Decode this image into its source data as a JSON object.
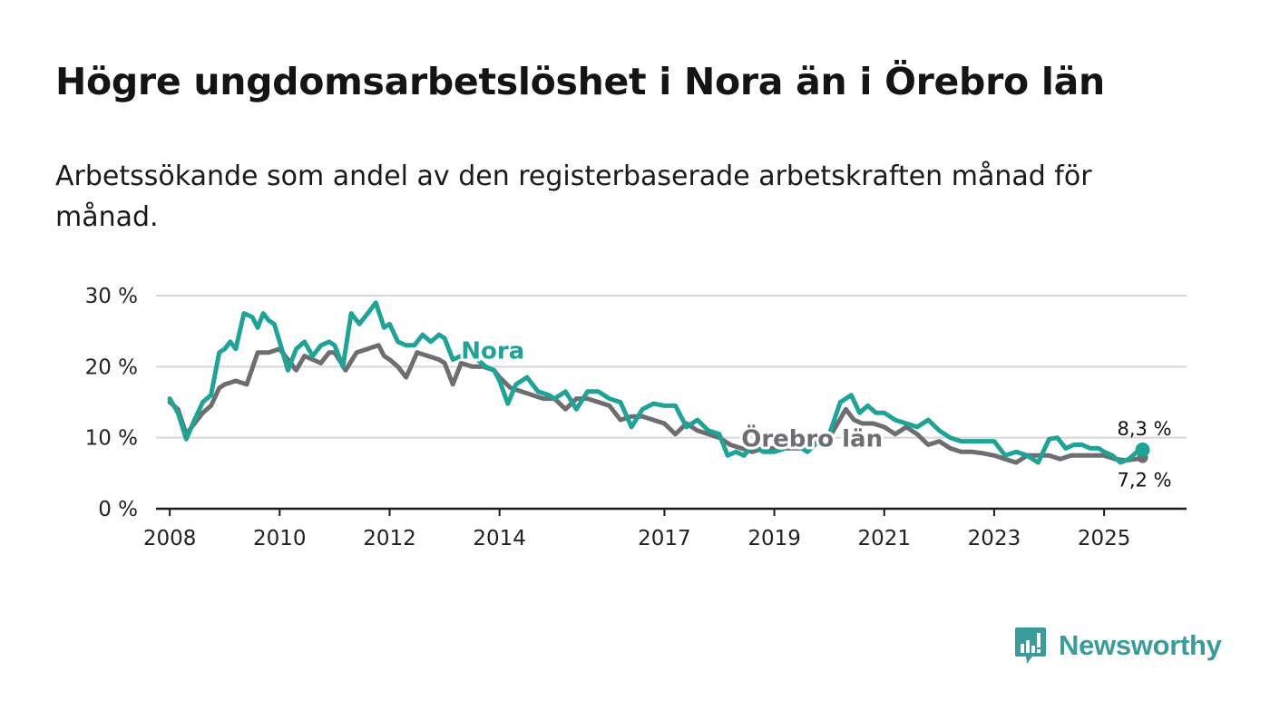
{
  "title": "Högre ungdomsarbetslöshet i Nora än i Örebro län",
  "subtitle": "Arbetssökande som andel av den registerbaserade arbetskraften månad för månad.",
  "brand": {
    "name": "Newsworthy",
    "color": "#3a9b9b"
  },
  "chart_data": {
    "type": "line",
    "title": "Högre ungdomsarbetslöshet i Nora än i Örebro län",
    "xlabel": "",
    "ylabel": "",
    "ylim": [
      0,
      30
    ],
    "xlim": [
      2007.75,
      2026.5
    ],
    "y_ticks": [
      0,
      10,
      20,
      30
    ],
    "y_tick_labels": [
      "0 %",
      "10 %",
      "20 %",
      "30 %"
    ],
    "x_ticks": [
      2008,
      2010,
      2012,
      2014,
      2017,
      2019,
      2021,
      2023,
      2025
    ],
    "x_tick_labels": [
      "2008",
      "2010",
      "2012",
      "2014",
      "2017",
      "2019",
      "2021",
      "2023",
      "2025"
    ],
    "grid": true,
    "series": [
      {
        "name": "Nora",
        "color": "#1fa396",
        "end_label": "8,3 %",
        "x": [
          2008.0,
          2008.15,
          2008.3,
          2008.45,
          2008.6,
          2008.75,
          2008.9,
          2009.0,
          2009.1,
          2009.2,
          2009.35,
          2009.5,
          2009.6,
          2009.7,
          2009.8,
          2009.9,
          2010.0,
          2010.15,
          2010.3,
          2010.45,
          2010.6,
          2010.75,
          2010.9,
          2011.0,
          2011.15,
          2011.3,
          2011.45,
          2011.6,
          2011.75,
          2011.9,
          2012.0,
          2012.15,
          2012.3,
          2012.45,
          2012.6,
          2012.75,
          2012.9,
          2013.0,
          2013.15,
          2013.3,
          2013.45,
          2013.6,
          2013.75,
          2013.9,
          2014.0,
          2014.15,
          2014.3,
          2014.5,
          2014.7,
          2014.9,
          2015.0,
          2015.2,
          2015.4,
          2015.6,
          2015.8,
          2016.0,
          2016.2,
          2016.4,
          2016.6,
          2016.8,
          2017.0,
          2017.2,
          2017.4,
          2017.6,
          2017.8,
          2018.0,
          2018.15,
          2018.3,
          2018.45,
          2018.6,
          2018.8,
          2019.0,
          2019.2,
          2019.4,
          2019.6,
          2019.8,
          2020.0,
          2020.2,
          2020.4,
          2020.55,
          2020.7,
          2020.85,
          2021.0,
          2021.2,
          2021.4,
          2021.6,
          2021.8,
          2022.0,
          2022.2,
          2022.4,
          2022.6,
          2022.8,
          2023.0,
          2023.2,
          2023.4,
          2023.6,
          2023.8,
          2024.0,
          2024.15,
          2024.3,
          2024.45,
          2024.6,
          2024.75,
          2024.9,
          2025.0,
          2025.15,
          2025.3,
          2025.45,
          2025.6,
          2025.7
        ],
        "values": [
          15.5,
          13.5,
          9.8,
          12.5,
          15.0,
          16.0,
          22.0,
          22.5,
          23.5,
          22.5,
          27.5,
          27.0,
          25.5,
          27.5,
          26.5,
          26.0,
          23.5,
          19.5,
          22.5,
          23.5,
          21.5,
          23.0,
          23.5,
          23.0,
          20.0,
          27.5,
          26.0,
          27.5,
          29.0,
          25.5,
          26.0,
          23.5,
          23.0,
          23.0,
          24.5,
          23.5,
          24.5,
          24.0,
          21.0,
          21.5,
          21.5,
          21.0,
          20.0,
          19.5,
          18.0,
          14.8,
          17.5,
          18.5,
          16.5,
          16.0,
          15.5,
          16.5,
          14.0,
          16.5,
          16.5,
          15.5,
          15.0,
          11.5,
          14.0,
          14.8,
          14.5,
          14.5,
          11.5,
          12.5,
          11.0,
          10.5,
          7.5,
          8.0,
          7.5,
          9.0,
          8.0,
          8.0,
          8.5,
          9.0,
          8.0,
          9.5,
          10.5,
          15.0,
          16.0,
          13.5,
          14.5,
          13.5,
          13.5,
          12.5,
          12.0,
          11.5,
          12.5,
          11.0,
          10.0,
          9.5,
          9.5,
          9.5,
          9.5,
          7.5,
          8.0,
          7.5,
          6.5,
          9.8,
          10.0,
          8.5,
          9.0,
          9.0,
          8.5,
          8.5,
          8.0,
          7.5,
          6.5,
          7.0,
          8.0,
          8.3
        ]
      },
      {
        "name": "Örebro län",
        "color": "#6e6d72",
        "end_label": "7,2 %",
        "x": [
          2008.0,
          2008.15,
          2008.3,
          2008.45,
          2008.6,
          2008.75,
          2008.9,
          2009.0,
          2009.2,
          2009.4,
          2009.6,
          2009.8,
          2010.0,
          2010.15,
          2010.3,
          2010.45,
          2010.6,
          2010.75,
          2010.9,
          2011.0,
          2011.2,
          2011.4,
          2011.6,
          2011.8,
          2011.9,
          2012.0,
          2012.15,
          2012.3,
          2012.5,
          2012.7,
          2012.9,
          2013.0,
          2013.15,
          2013.3,
          2013.5,
          2013.7,
          2013.9,
          2014.0,
          2014.2,
          2014.4,
          2014.6,
          2014.8,
          2015.0,
          2015.2,
          2015.4,
          2015.6,
          2015.8,
          2016.0,
          2016.2,
          2016.4,
          2016.6,
          2016.8,
          2017.0,
          2017.2,
          2017.4,
          2017.6,
          2017.8,
          2018.0,
          2018.2,
          2018.4,
          2018.6,
          2018.8,
          2019.0,
          2019.2,
          2019.4,
          2019.6,
          2019.8,
          2020.0,
          2020.15,
          2020.3,
          2020.45,
          2020.6,
          2020.8,
          2021.0,
          2021.2,
          2021.4,
          2021.6,
          2021.8,
          2022.0,
          2022.2,
          2022.4,
          2022.6,
          2022.8,
          2023.0,
          2023.2,
          2023.4,
          2023.6,
          2023.8,
          2024.0,
          2024.2,
          2024.4,
          2024.6,
          2024.8,
          2025.0,
          2025.2,
          2025.4,
          2025.6,
          2025.7
        ],
        "values": [
          15.0,
          14.0,
          10.5,
          12.0,
          13.5,
          14.5,
          17.0,
          17.5,
          18.0,
          17.5,
          22.0,
          22.0,
          22.5,
          21.0,
          19.5,
          21.5,
          21.0,
          20.5,
          22.0,
          22.0,
          19.5,
          22.0,
          22.5,
          23.0,
          21.5,
          21.0,
          20.0,
          18.5,
          22.0,
          21.5,
          21.0,
          20.5,
          17.5,
          20.5,
          20.0,
          20.0,
          19.5,
          18.5,
          17.0,
          16.5,
          16.0,
          15.5,
          15.5,
          14.0,
          15.5,
          15.5,
          15.0,
          14.5,
          12.5,
          13.0,
          13.0,
          12.5,
          12.0,
          10.5,
          12.0,
          11.0,
          10.5,
          10.0,
          9.0,
          8.5,
          8.0,
          8.5,
          8.5,
          8.5,
          8.5,
          8.5,
          9.5,
          10.0,
          12.0,
          14.0,
          12.5,
          12.0,
          12.0,
          11.5,
          10.5,
          11.5,
          10.5,
          9.0,
          9.5,
          8.5,
          8.0,
          8.0,
          7.8,
          7.5,
          7.0,
          6.5,
          7.5,
          7.5,
          7.5,
          7.0,
          7.5,
          7.5,
          7.5,
          7.5,
          7.0,
          6.8,
          7.0,
          7.2
        ]
      }
    ],
    "annotations": [
      {
        "text": "Nora",
        "series": 0
      },
      {
        "text": "Örebro län",
        "series": 1
      }
    ]
  }
}
